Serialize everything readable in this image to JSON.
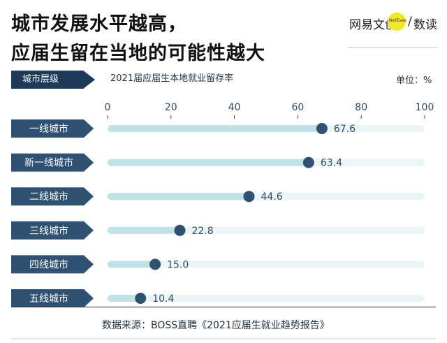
{
  "title_line1": "城市发展水平越高，",
  "title_line2": "应届生留在当地的可能性越大",
  "brand": {
    "netease": "网易文创",
    "dot_text": "NetEase",
    "slash": "/",
    "shudu": "数读"
  },
  "header": {
    "tier_label": "城市层级",
    "metric_label": "2021届应届生本地就业留存率",
    "unit": "单位：%"
  },
  "source": "数据来源：BOSS直聘《2021应届生就业趋势报告》",
  "chart_data": {
    "type": "bar",
    "categories": [
      "一线城市",
      "新一线城市",
      "二线城市",
      "三线城市",
      "四线城市",
      "五线城市"
    ],
    "values": [
      67.6,
      63.4,
      44.6,
      22.8,
      15.0,
      10.4
    ],
    "value_labels": [
      "67.6",
      "63.4",
      "44.6",
      "22.8",
      "15.0",
      "10.4"
    ],
    "xlim": [
      0,
      100
    ],
    "xticks": [
      "0",
      "20",
      "40",
      "60",
      "80",
      "100"
    ],
    "colors": {
      "track": "#e9f5f6",
      "bar": "#bfe2e6",
      "dot": "#2f5273",
      "tag": "#2f5273",
      "text": "#2f4a66"
    }
  }
}
